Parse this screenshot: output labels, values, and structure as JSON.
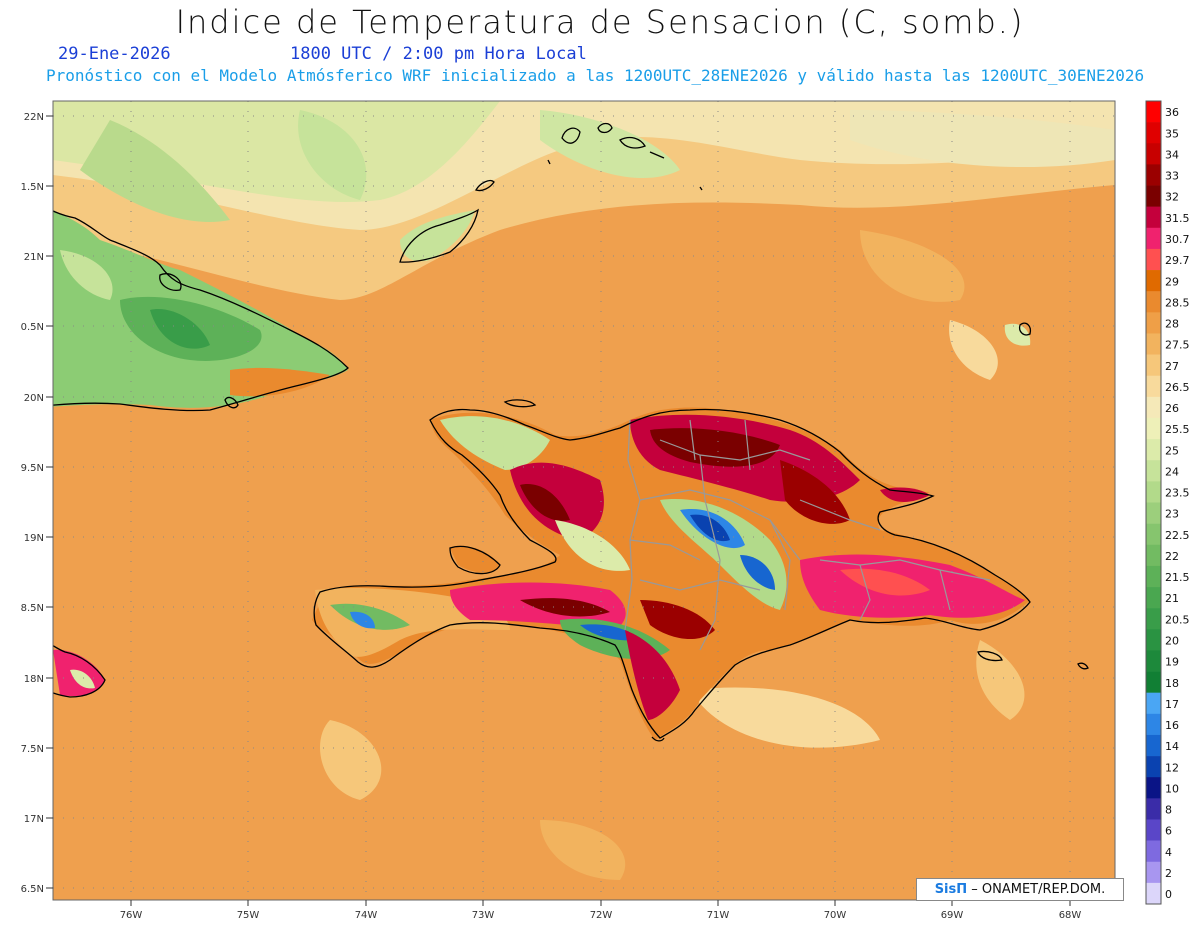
{
  "header": {
    "title": "Indice de Temperatura de Sensacion (C, somb.)",
    "date": "29-Ene-2026",
    "time": "1800 UTC / 2:00 pm Hora Local",
    "model_info": "Pronóstico con el Modelo Atmósferico WRF inicializado a las 1200UTC_28ENE2026 y válido hasta las  1200UTC_30ENE2026"
  },
  "map": {
    "lat_labels": [
      "22N",
      "1.5N",
      "21N",
      "0.5N",
      "20N",
      "9.5N",
      "19N",
      "8.5N",
      "18N",
      "7.5N",
      "17N",
      "6.5N"
    ],
    "lon_labels": [
      "76W",
      "75W",
      "74W",
      "73W",
      "72W",
      "71W",
      "70W",
      "69W",
      "68W"
    ]
  },
  "legend": {
    "entries": [
      {
        "label": "36",
        "color": "#ff0000"
      },
      {
        "label": "35",
        "color": "#e00000"
      },
      {
        "label": "34",
        "color": "#c80000"
      },
      {
        "label": "33",
        "color": "#9b0000"
      },
      {
        "label": "32",
        "color": "#7a0000"
      },
      {
        "label": "31.5",
        "color": "#c4003c"
      },
      {
        "label": "30.7",
        "color": "#f0226e"
      },
      {
        "label": "29.7",
        "color": "#ff5050"
      },
      {
        "label": "29",
        "color": "#e06a00"
      },
      {
        "label": "28.5",
        "color": "#ea8a2e"
      },
      {
        "label": "28",
        "color": "#ef9f47"
      },
      {
        "label": "27.5",
        "color": "#f2b35e"
      },
      {
        "label": "27",
        "color": "#f6c77a"
      },
      {
        "label": "26.5",
        "color": "#f8da9c"
      },
      {
        "label": "26",
        "color": "#f5e9b8"
      },
      {
        "label": "25.5",
        "color": "#eef0b8"
      },
      {
        "label": "25",
        "color": "#dcebaa"
      },
      {
        "label": "24",
        "color": "#c6e39a"
      },
      {
        "label": "23.5",
        "color": "#b2da8a"
      },
      {
        "label": "23",
        "color": "#9ccf7c"
      },
      {
        "label": "22.5",
        "color": "#86c56e"
      },
      {
        "label": "22",
        "color": "#72bb62"
      },
      {
        "label": "21.5",
        "color": "#5db158"
      },
      {
        "label": "21",
        "color": "#4aa750"
      },
      {
        "label": "20.5",
        "color": "#399d49"
      },
      {
        "label": "20",
        "color": "#2a9342"
      },
      {
        "label": "19",
        "color": "#1d893b"
      },
      {
        "label": "18",
        "color": "#117f34"
      },
      {
        "label": "17",
        "color": "#4aa6f4"
      },
      {
        "label": "16",
        "color": "#2d86e6"
      },
      {
        "label": "14",
        "color": "#1766d0"
      },
      {
        "label": "12",
        "color": "#0a42b0"
      },
      {
        "label": "10",
        "color": "#0a1486"
      },
      {
        "label": "8",
        "color": "#3a2ca8"
      },
      {
        "label": "6",
        "color": "#5a46c8"
      },
      {
        "label": "4",
        "color": "#7e6ae0"
      },
      {
        "label": "2",
        "color": "#a896f0"
      },
      {
        "label": "0",
        "color": "#dcd6fa"
      }
    ]
  },
  "credit": {
    "brand": "SisΠ",
    "text": "– ONAMET/REP.DOM."
  }
}
